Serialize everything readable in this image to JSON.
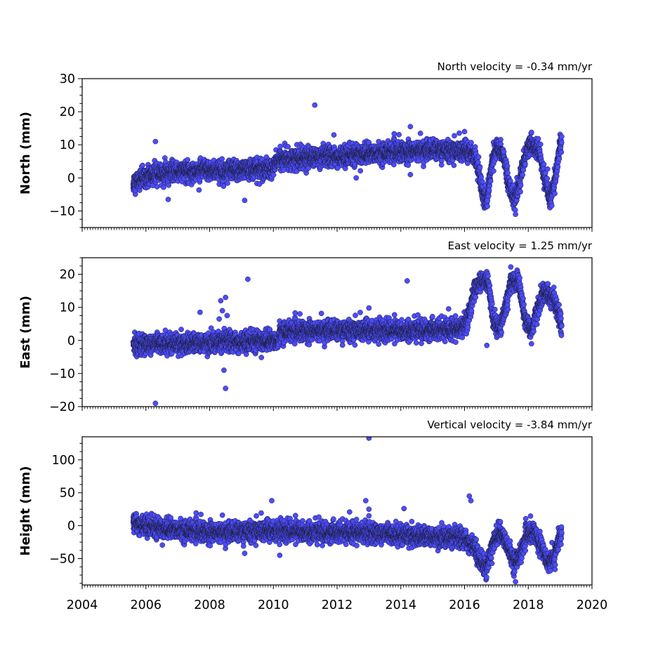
{
  "chart_data": [
    {
      "type": "scatter",
      "title": "North velocity = -0.34 mm/yr",
      "ylabel": "North (mm)",
      "xlim": [
        2004,
        2020
      ],
      "ylim": [
        -15,
        30
      ],
      "yticks": [
        -10,
        0,
        10,
        20,
        30
      ],
      "marker_color": "#4c4cff",
      "edge_color": "#1a1a33",
      "trend": [
        [
          2005.6,
          -1.5
        ],
        [
          2006.0,
          0.5
        ],
        [
          2007.0,
          2.0
        ],
        [
          2008.0,
          2.2
        ],
        [
          2009.0,
          2.5
        ],
        [
          2010.0,
          2.8
        ],
        [
          2010.1,
          5.5
        ],
        [
          2011.0,
          6.0
        ],
        [
          2012.0,
          6.5
        ],
        [
          2013.0,
          7.2
        ],
        [
          2014.0,
          8.0
        ],
        [
          2015.0,
          8.5
        ],
        [
          2016.0,
          8.0
        ],
        [
          2016.3,
          7.5
        ],
        [
          2016.45,
          2.0
        ],
        [
          2016.55,
          -4.0
        ],
        [
          2016.7,
          -7.0
        ],
        [
          2016.85,
          4.0
        ],
        [
          2017.0,
          9.0
        ],
        [
          2017.2,
          8.0
        ],
        [
          2017.35,
          0.0
        ],
        [
          2017.55,
          -7.0
        ],
        [
          2017.7,
          -3.0
        ],
        [
          2017.85,
          5.0
        ],
        [
          2018.0,
          10.0
        ],
        [
          2018.2,
          9.5
        ],
        [
          2018.35,
          8.0
        ],
        [
          2018.5,
          0.0
        ],
        [
          2018.7,
          -6.5
        ],
        [
          2018.85,
          0.0
        ],
        [
          2019.0,
          10.0
        ],
        [
          2019.05,
          11.0
        ]
      ],
      "outliers": [
        [
          2011.3,
          22
        ],
        [
          2006.3,
          11
        ],
        [
          2014.3,
          15.5
        ],
        [
          2006.7,
          -6.5
        ],
        [
          2009.1,
          -6.8
        ],
        [
          2011.9,
          13
        ],
        [
          2016.0,
          14
        ],
        [
          2014.3,
          1
        ],
        [
          2012.6,
          0
        ],
        [
          2017.6,
          -11
        ]
      ]
    },
    {
      "type": "scatter",
      "title": "East velocity = 1.25 mm/yr",
      "ylabel": "East (mm)",
      "xlim": [
        2004,
        2020
      ],
      "ylim": [
        -20,
        25
      ],
      "yticks": [
        -20,
        -10,
        0,
        10,
        20
      ],
      "marker_color": "#4c4cff",
      "edge_color": "#1a1a33",
      "trend": [
        [
          2005.6,
          -1.5
        ],
        [
          2006.5,
          -1.0
        ],
        [
          2007.5,
          -0.8
        ],
        [
          2008.5,
          -0.5
        ],
        [
          2009.5,
          -0.3
        ],
        [
          2010.15,
          -0.2
        ],
        [
          2010.2,
          2.5
        ],
        [
          2011.0,
          3.0
        ],
        [
          2012.0,
          3.0
        ],
        [
          2013.0,
          3.0
        ],
        [
          2014.0,
          3.0
        ],
        [
          2015.0,
          3.2
        ],
        [
          2015.9,
          3.5
        ],
        [
          2016.1,
          6.0
        ],
        [
          2016.3,
          15.0
        ],
        [
          2016.5,
          18.0
        ],
        [
          2016.75,
          17.0
        ],
        [
          2016.9,
          6.0
        ],
        [
          2017.1,
          3.5
        ],
        [
          2017.3,
          10.0
        ],
        [
          2017.45,
          18.0
        ],
        [
          2017.7,
          18.0
        ],
        [
          2017.9,
          6.0
        ],
        [
          2018.1,
          3.0
        ],
        [
          2018.3,
          10.0
        ],
        [
          2018.5,
          15.0
        ],
        [
          2018.8,
          12.0
        ],
        [
          2019.0,
          6.0
        ],
        [
          2019.05,
          4.0
        ]
      ],
      "outliers": [
        [
          2006.3,
          -19
        ],
        [
          2009.2,
          18.5
        ],
        [
          2014.2,
          18
        ],
        [
          2008.5,
          13
        ],
        [
          2008.35,
          12
        ],
        [
          2008.5,
          -14.5
        ],
        [
          2008.4,
          9
        ],
        [
          2007.7,
          8.5
        ],
        [
          2008.45,
          -9
        ],
        [
          2013.0,
          9.8
        ],
        [
          2008.3,
          6.5
        ],
        [
          2008.55,
          7.5
        ],
        [
          2016.7,
          -1.5
        ],
        [
          2018.1,
          -1.0
        ]
      ]
    },
    {
      "type": "scatter",
      "title": "Vertical velocity = -3.84 mm/yr",
      "ylabel": "Height (mm)",
      "xlabel": "",
      "xlim": [
        2004,
        2020
      ],
      "ylim": [
        -90,
        135
      ],
      "yticks": [
        -50,
        0,
        50,
        100
      ],
      "xticks": [
        2004,
        2006,
        2008,
        2010,
        2012,
        2014,
        2016,
        2018,
        2020
      ],
      "marker_color": "#4c4cff",
      "edge_color": "#1a1a33",
      "trend": [
        [
          2005.6,
          5.0
        ],
        [
          2006.5,
          -5.0
        ],
        [
          2007.5,
          -8.0
        ],
        [
          2008.5,
          -10.0
        ],
        [
          2009.5,
          -8.0
        ],
        [
          2010.5,
          -8.0
        ],
        [
          2011.5,
          -10.0
        ],
        [
          2012.5,
          -10.0
        ],
        [
          2013.5,
          -13.0
        ],
        [
          2014.5,
          -15.0
        ],
        [
          2015.5,
          -18.0
        ],
        [
          2016.0,
          -20.0
        ],
        [
          2016.3,
          -30.0
        ],
        [
          2016.5,
          -55.0
        ],
        [
          2016.7,
          -65.0
        ],
        [
          2016.9,
          -25.0
        ],
        [
          2017.1,
          -10.0
        ],
        [
          2017.3,
          -25.0
        ],
        [
          2017.55,
          -55.0
        ],
        [
          2017.75,
          -45.0
        ],
        [
          2017.95,
          -12.0
        ],
        [
          2018.2,
          -10.0
        ],
        [
          2018.4,
          -30.0
        ],
        [
          2018.6,
          -55.0
        ],
        [
          2018.8,
          -50.0
        ],
        [
          2018.95,
          -20.0
        ],
        [
          2019.05,
          -15.0
        ]
      ],
      "outliers": [
        [
          2013.0,
          133
        ],
        [
          2009.95,
          38
        ],
        [
          2012.9,
          38
        ],
        [
          2013.0,
          25
        ],
        [
          2014.1,
          26
        ],
        [
          2016.15,
          45
        ],
        [
          2016.2,
          38
        ],
        [
          2010.2,
          -45
        ],
        [
          2009.1,
          -42
        ],
        [
          2013.0,
          15
        ],
        [
          2017.6,
          -85
        ]
      ]
    }
  ]
}
